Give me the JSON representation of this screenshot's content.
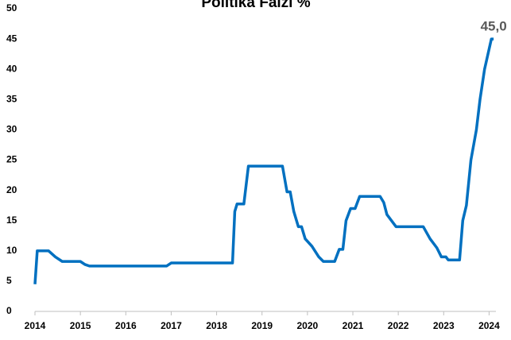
{
  "chart_data": {
    "type": "line",
    "title": "Politika Faizi %",
    "x": [
      2014.0,
      2014.05,
      2014.3,
      2014.45,
      2014.6,
      2015.0,
      2015.1,
      2015.2,
      2016.0,
      2016.9,
      2017.0,
      2018.35,
      2018.4,
      2018.45,
      2018.6,
      2018.7,
      2019.45,
      2019.55,
      2019.62,
      2019.7,
      2019.8,
      2019.87,
      2019.95,
      2020.1,
      2020.25,
      2020.35,
      2020.6,
      2020.7,
      2020.78,
      2020.85,
      2020.95,
      2021.05,
      2021.15,
      2021.6,
      2021.68,
      2021.75,
      2021.85,
      2021.95,
      2022.55,
      2022.7,
      2022.85,
      2022.95,
      2023.05,
      2023.1,
      2023.35,
      2023.42,
      2023.5,
      2023.6,
      2023.72,
      2023.8,
      2023.9,
      2024.05,
      2024.1
    ],
    "series": [
      {
        "name": "Politika Faizi",
        "color": "#0070c0",
        "values": [
          4.5,
          10,
          10,
          9,
          8.25,
          8.25,
          7.75,
          7.5,
          7.5,
          7.5,
          8,
          8,
          16.5,
          17.75,
          17.75,
          24,
          24,
          19.75,
          19.75,
          16.5,
          14,
          14,
          12,
          10.75,
          9,
          8.25,
          8.25,
          10.25,
          10.25,
          15,
          17,
          17,
          19,
          19,
          18,
          16,
          15,
          14,
          14,
          12,
          10.5,
          9,
          9,
          8.5,
          8.5,
          15,
          17.5,
          25,
          30,
          35,
          40,
          45,
          45
        ]
      }
    ],
    "annotations": [
      {
        "text": "45,0",
        "x": 2024.1,
        "y": 45
      }
    ],
    "xlim": [
      2014,
      2024.15
    ],
    "xticks": [
      2014,
      2015,
      2016,
      2017,
      2018,
      2019,
      2020,
      2021,
      2022,
      2023,
      2024
    ],
    "ylim": [
      0,
      50
    ],
    "yticks": [
      0,
      5,
      10,
      15,
      20,
      25,
      30,
      35,
      40,
      45,
      50
    ],
    "grid": false
  }
}
